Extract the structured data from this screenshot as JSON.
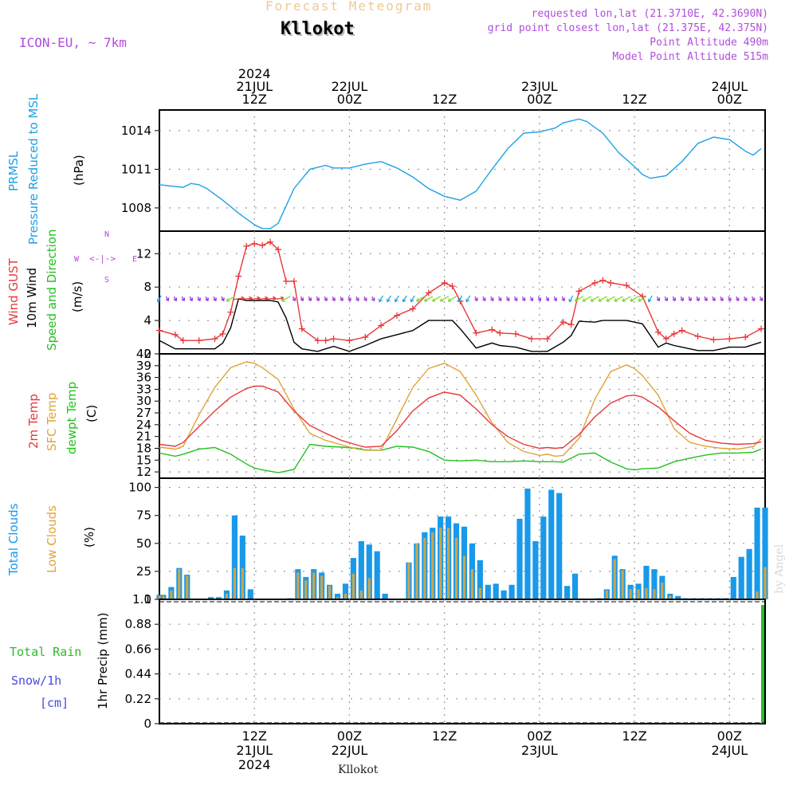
{
  "header": {
    "title": "Forecast Meteogram",
    "station": "Kllokot",
    "model": "ICON-EU, ~ 7km",
    "requested": "requested lon,lat (21.3710E, 42.3690N)",
    "gridpoint": "grid point closest lon,lat (21.375E, 42.375N)",
    "point_alt": "Point Altitude 490m",
    "model_alt": "Model Point Altitude 515m",
    "footer_station": "Kllokot",
    "credit": "by Angel"
  },
  "time_axis": {
    "top_labels": [
      {
        "h": 12,
        "lines": [
          "2024",
          "21JUL",
          "12Z"
        ]
      },
      {
        "h": 24,
        "lines": [
          "22JUL",
          "00Z"
        ]
      },
      {
        "h": 36,
        "lines": [
          "12Z"
        ]
      },
      {
        "h": 48,
        "lines": [
          "23JUL",
          "00Z"
        ]
      },
      {
        "h": 60,
        "lines": [
          "12Z"
        ]
      },
      {
        "h": 72,
        "lines": [
          "24JUL",
          "00Z"
        ]
      }
    ],
    "bottom_labels": [
      {
        "h": 12,
        "lines": [
          "12Z",
          "21JUL",
          "2024"
        ]
      },
      {
        "h": 24,
        "lines": [
          "00Z",
          "22JUL"
        ]
      },
      {
        "h": 36,
        "lines": [
          "12Z"
        ]
      },
      {
        "h": 48,
        "lines": [
          "00Z",
          "23JUL"
        ]
      },
      {
        "h": 60,
        "lines": [
          "12Z"
        ]
      },
      {
        "h": 72,
        "lines": [
          "00Z",
          "24JUL"
        ]
      }
    ]
  },
  "panel_labels": {
    "pressure": [
      "PRMSL",
      "Pressure Reduced to MSL",
      "(hPa)"
    ],
    "wind": [
      "Wind GUST",
      "10m Wind",
      "Speed and Direction",
      "(m/s)"
    ],
    "compass": {
      "n": "N",
      "s": "S",
      "w": "W",
      "e": "E"
    },
    "temp": [
      "2m Temp",
      "SFC Temp",
      "dewpt Temp",
      "(C)"
    ],
    "clouds": [
      "Total Clouds",
      "Low Clouds",
      "(%)"
    ],
    "precip": [
      "Total  Rain",
      "Snow/1h",
      "[cm]",
      "1hr Precip (mm)"
    ]
  },
  "colors": {
    "pressure": "#1ea0e6",
    "gust": "#e8383a",
    "wind": "#000000",
    "t2m": "#e8383a",
    "sfc": "#e0a43a",
    "dew": "#22c11e",
    "total_cloud": "#1899ea",
    "low_cloud": "#c9a64e",
    "rain": "#2db92d",
    "snow": "#4a4ae0",
    "purple": "#b04ddb"
  },
  "chart_data": [
    {
      "type": "line",
      "id": "pressure",
      "ylabel": "(hPa)",
      "yticks": [
        1008,
        1011,
        1014
      ],
      "ylim": [
        1006.2,
        1015.6
      ],
      "x_hours": [
        0,
        3,
        4,
        5,
        6,
        8,
        10,
        12,
        13,
        14,
        15,
        17,
        19,
        21,
        22,
        24,
        26,
        28,
        30,
        32,
        34,
        36,
        38,
        40,
        42,
        44,
        46,
        48,
        50,
        51,
        53,
        54,
        56,
        58,
        60,
        61,
        62,
        64,
        66,
        68,
        70,
        72,
        74,
        75,
        76
      ],
      "series": [
        {
          "values": [
            1009.8,
            1009.6,
            1009.9,
            1009.8,
            1009.5,
            1008.6,
            1007.6,
            1006.7,
            1006.4,
            1006.4,
            1006.8,
            1009.5,
            1011.0,
            1011.3,
            1011.1,
            1011.1,
            1011.4,
            1011.6,
            1011.1,
            1010.4,
            1009.5,
            1008.9,
            1008.6,
            1009.3,
            1011.0,
            1012.6,
            1013.8,
            1013.9,
            1014.2,
            1014.6,
            1014.9,
            1014.7,
            1013.8,
            1012.3,
            1011.2,
            1010.6,
            1010.3,
            1010.5,
            1011.6,
            1013.0,
            1013.5,
            1013.3,
            1012.4,
            1012.1,
            1012.6
          ]
        }
      ]
    },
    {
      "type": "line",
      "id": "wind",
      "ylabel": "(m/s)",
      "yticks": [
        0,
        4,
        8,
        12
      ],
      "ylim": [
        0,
        14.7
      ],
      "x_hours": [
        0,
        2,
        3,
        5,
        7,
        8,
        9,
        10,
        11,
        12,
        13,
        14,
        15,
        16,
        17,
        18,
        20,
        21,
        22,
        24,
        26,
        28,
        30,
        32,
        34,
        36,
        37,
        38,
        40,
        42,
        43,
        45,
        47,
        49,
        51,
        52,
        53,
        55,
        56,
        57,
        59,
        61,
        63,
        64,
        65,
        66,
        68,
        70,
        72,
        74,
        76
      ],
      "series": [
        {
          "name": "Wind GUST",
          "values": [
            2.8,
            2.3,
            1.6,
            1.6,
            1.8,
            2.4,
            5.0,
            9.3,
            12.9,
            13.2,
            13.0,
            13.4,
            12.5,
            8.7,
            8.7,
            3.0,
            1.6,
            1.6,
            1.8,
            1.6,
            2.0,
            3.4,
            4.6,
            5.4,
            7.3,
            8.5,
            8.1,
            6.3,
            2.5,
            2.9,
            2.5,
            2.4,
            1.8,
            1.8,
            3.8,
            3.5,
            7.5,
            8.5,
            8.8,
            8.5,
            8.2,
            6.9,
            2.6,
            1.8,
            2.4,
            2.8,
            2.1,
            1.7,
            1.8,
            2.0,
            3.0
          ]
        },
        {
          "name": "10m Wind",
          "values": [
            1.6,
            0.6,
            0.6,
            0.6,
            0.6,
            1.3,
            3.1,
            6.6,
            6.4,
            6.4,
            6.4,
            6.4,
            6.2,
            4.3,
            1.4,
            0.6,
            0.3,
            0.6,
            0.9,
            0.3,
            1.0,
            1.8,
            2.3,
            2.8,
            4.0,
            4.0,
            4.0,
            3.0,
            0.7,
            1.3,
            1.0,
            0.8,
            0.3,
            0.3,
            1.4,
            2.2,
            3.9,
            3.8,
            4.0,
            4.0,
            4.0,
            3.6,
            0.8,
            1.3,
            1.0,
            0.8,
            0.4,
            0.4,
            0.8,
            0.8,
            1.4
          ]
        }
      ]
    },
    {
      "type": "line",
      "id": "temp",
      "ylabel": "(C)",
      "yticks": [
        12,
        15,
        18,
        21,
        24,
        27,
        30,
        33,
        36,
        39,
        42
      ],
      "ylim": [
        10.4,
        42
      ],
      "x_hours": [
        0,
        2,
        3,
        5,
        7,
        9,
        11,
        12,
        13,
        15,
        17,
        19,
        21,
        23,
        25,
        26,
        28,
        30,
        32,
        34,
        36,
        38,
        40,
        42,
        44,
        46,
        48,
        49,
        50,
        51,
        53,
        55,
        57,
        59,
        60,
        61,
        63,
        65,
        67,
        69,
        71,
        73,
        75,
        76
      ],
      "series": [
        {
          "name": "2m Temp",
          "values": [
            19.0,
            18.5,
            19.5,
            23.5,
            27.5,
            31.0,
            33.2,
            33.8,
            33.8,
            32.3,
            27.5,
            23.8,
            21.8,
            20.0,
            18.8,
            18.3,
            18.5,
            22.5,
            27.5,
            30.8,
            32.3,
            31.5,
            28.0,
            24.0,
            21.0,
            19.0,
            18.0,
            18.2,
            18.0,
            18.2,
            21.5,
            26.0,
            29.5,
            31.3,
            31.5,
            31.0,
            28.5,
            25.0,
            21.8,
            20.0,
            19.3,
            19.0,
            19.2,
            19.6
          ]
        },
        {
          "name": "SFC Temp",
          "values": [
            18.3,
            17.8,
            18.5,
            26.5,
            33.5,
            38.5,
            40.0,
            39.6,
            38.5,
            35.5,
            28.0,
            21.8,
            20.0,
            18.9,
            17.8,
            17.5,
            17.5,
            25.5,
            33.5,
            38.3,
            39.6,
            37.5,
            31.5,
            24.5,
            19.5,
            17.2,
            16.2,
            16.5,
            16.0,
            16.2,
            20.5,
            30.5,
            37.5,
            39.2,
            38.3,
            36.5,
            31.5,
            23.0,
            19.5,
            18.5,
            18.0,
            17.8,
            18.4,
            20.5
          ]
        },
        {
          "name": "dewpt Temp",
          "values": [
            16.8,
            16.0,
            16.5,
            17.8,
            18.2,
            16.5,
            14.0,
            13.0,
            12.5,
            11.8,
            12.6,
            19.0,
            18.5,
            18.3,
            18.0,
            17.6,
            17.5,
            18.5,
            18.3,
            17.2,
            15.0,
            14.8,
            15.0,
            14.6,
            14.6,
            14.8,
            14.6,
            14.6,
            14.6,
            14.5,
            16.5,
            16.8,
            14.5,
            12.8,
            12.5,
            12.8,
            13.0,
            14.6,
            15.5,
            16.3,
            16.8,
            16.8,
            17.0,
            17.8
          ]
        }
      ]
    },
    {
      "type": "bar",
      "id": "clouds",
      "ylabel": "(%)",
      "yticks": [
        0,
        25,
        50,
        75,
        100
      ],
      "ylim": [
        0,
        108.3
      ],
      "x_hours": [
        0,
        0.5,
        1.5,
        2.5,
        3.5,
        5.5,
        6.5,
        7.5,
        8.5,
        9.5,
        10.5,
        11.5,
        12.5,
        13.5,
        14.5,
        15.5,
        16.5,
        17.5,
        18.5,
        19.5,
        20.5,
        21.5,
        22.5,
        23.5,
        24.5,
        25.5,
        26.5,
        27.5,
        28.5,
        29.5,
        30.5,
        31.5,
        32.5,
        33.5,
        34.5,
        35.5,
        36.5,
        37.5,
        38.5,
        39.5,
        40.5,
        41.5,
        42.5,
        43.5,
        44.5,
        45.5,
        46.5,
        47.5,
        48.5,
        49.5,
        50.5,
        51.5,
        52.5,
        53.5,
        54.5,
        55.5,
        56.5,
        57.5,
        58.5,
        59.5,
        60.5,
        61.5,
        62.5,
        63.5,
        64.5,
        65.5,
        66.5,
        67.5,
        68.5,
        69.5,
        70.5,
        71.5,
        72.5,
        73.5,
        74.5,
        75.5,
        76.5
      ],
      "series": [
        {
          "name": "Total Clouds",
          "values": [
            4,
            4,
            11,
            28,
            22,
            0,
            2,
            2,
            8,
            75,
            57,
            9,
            0,
            0,
            0,
            0,
            1,
            27,
            20,
            27,
            24,
            13,
            5,
            14,
            37,
            52,
            49,
            43,
            5,
            0,
            0,
            33,
            50,
            60,
            64,
            74,
            74,
            68,
            65,
            50,
            35,
            13,
            14,
            8,
            13,
            72,
            99,
            52,
            74,
            98,
            95,
            12,
            23,
            0,
            0,
            1,
            9,
            39,
            27,
            13,
            14,
            30,
            27,
            21,
            5,
            3,
            1,
            1,
            1,
            1,
            1,
            1,
            20,
            38,
            45,
            82,
            82
          ]
        },
        {
          "name": "Low Clouds",
          "values": [
            3,
            3,
            8,
            27,
            21,
            0,
            0,
            0,
            5,
            28,
            28,
            0,
            0,
            0,
            0,
            0,
            0,
            24,
            17,
            24,
            21,
            12,
            2,
            5,
            23,
            8,
            19,
            0,
            0,
            0,
            0,
            33,
            50,
            55,
            60,
            64,
            64,
            55,
            39,
            27,
            10,
            0,
            0,
            0,
            0,
            0,
            0,
            0,
            0,
            0,
            0,
            0,
            0,
            0,
            0,
            0,
            8,
            36,
            26,
            9,
            9,
            10,
            9,
            15,
            3,
            0,
            0,
            0,
            0,
            0,
            0,
            0,
            0,
            0,
            0,
            7,
            29
          ]
        }
      ]
    },
    {
      "type": "bar",
      "id": "precip",
      "ylabel": "1hr Precip (mm)",
      "yticks": [
        0,
        0.22,
        0.44,
        0.66,
        0.88,
        1.1
      ],
      "ylim": [
        0,
        1.1
      ],
      "x_hours": [
        76
      ],
      "series": [
        {
          "name": "Total Rain",
          "values": [
            1.05
          ]
        }
      ]
    }
  ],
  "wind_arrows": {
    "n": 76,
    "lowcolor": "#9b36e0"
  }
}
